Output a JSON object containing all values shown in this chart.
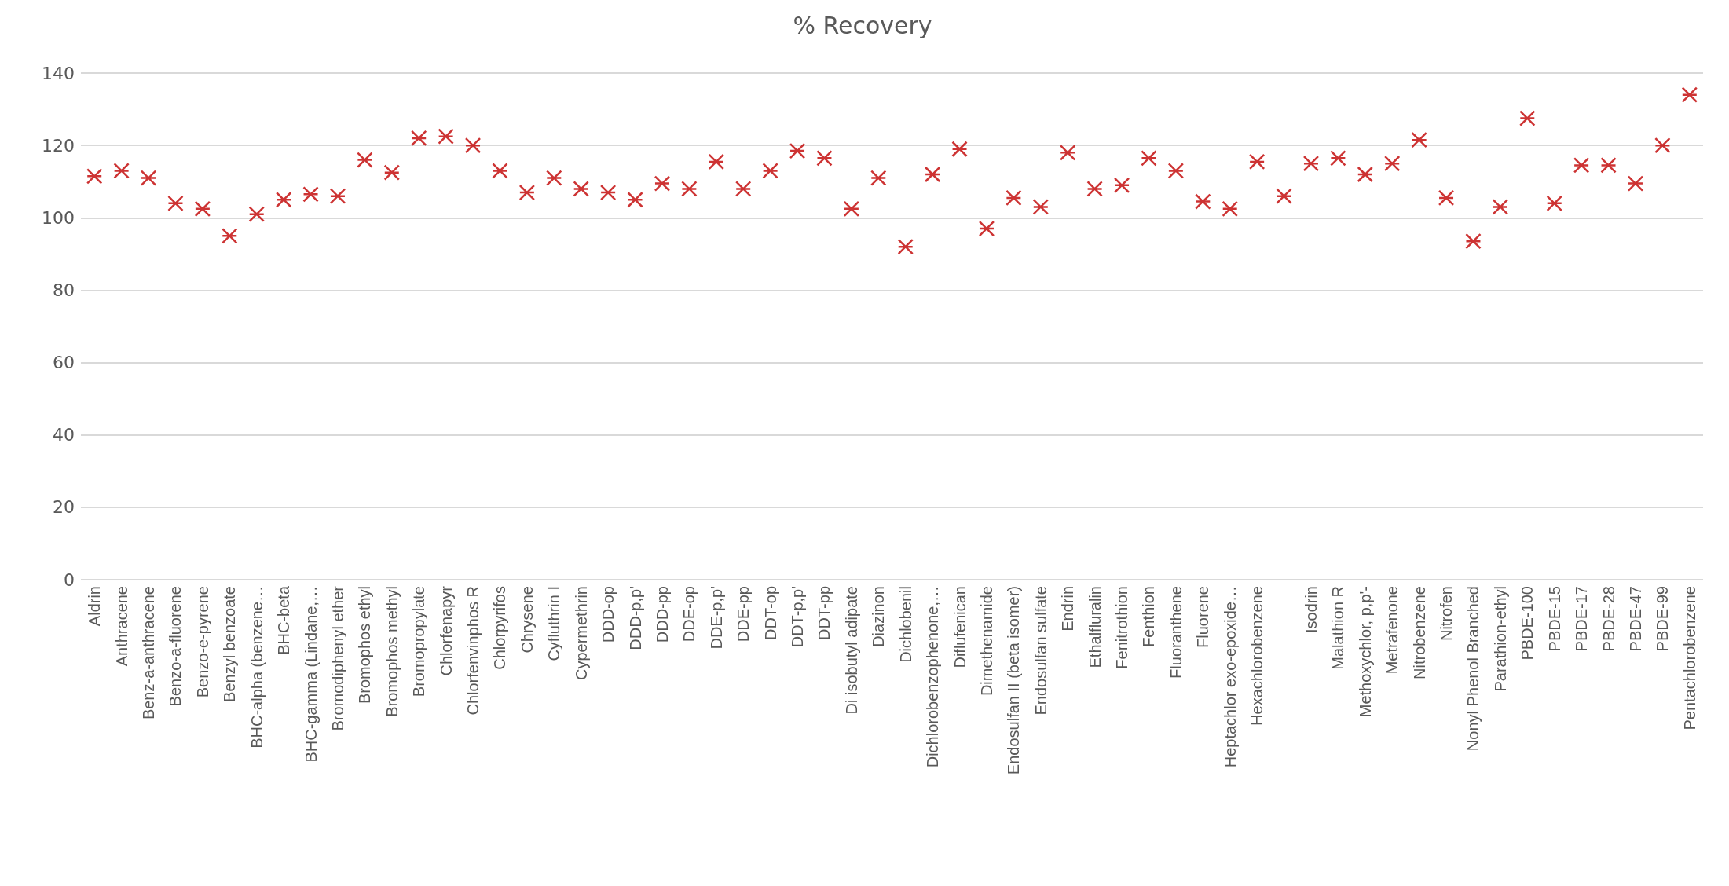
{
  "chart_data": {
    "type": "scatter",
    "title": "% Recovery",
    "categories": [
      "Aldrin",
      "Anthracene",
      "Benz-a-anthracene",
      "Benzo-a-fluorene",
      "Benzo-e-pyrene",
      "Benzyl benzoate",
      "BHC-alpha (benzene…",
      "BHC-beta",
      "BHC-gamma (Lindane,…",
      "Bromodiphenyl ether",
      "Bromophos ethyl",
      "Bromophos methyl",
      "Bromopropylate",
      "Chlorfenapyr",
      "Chlorfenvinphos R",
      "Chlorpyrifos",
      "Chrysene",
      "Cyfluthrin I",
      "Cypermethrin",
      "DDD-op",
      "DDD-p,p'",
      "DDD-pp",
      "DDE-op",
      "DDE-p,p'",
      "DDE-pp",
      "DDT-op",
      "DDT-p,p'",
      "DDT-pp",
      "Di isobutyl adipate",
      "Diazinon",
      "Dichlobenil",
      "Dichlorobenzophenone,…",
      "Diflufenican",
      "Dimethenamide",
      "Endosulfan II (beta isomer)",
      "Endosulfan sulfate",
      "Endrin",
      "Ethalfluralin",
      "Fenitrothion",
      "Fenthion",
      "Fluoranthene",
      "Fluorene",
      "Heptachlor exo-epoxide…",
      "Hexachlorobenzene",
      null,
      "Isodrin",
      "Malathion R",
      "Methoxychlor, p,p'-",
      "Metrafenone",
      "Nitrobenzene",
      "Nitrofen",
      "Nonyl Phenol Branched",
      "Parathion-ethyl",
      "PBDE-100",
      "PBDE-15",
      "PBDE-17",
      "PBDE-28",
      "PBDE-47",
      "PBDE-99",
      "Pentachlorobenzene"
    ],
    "values": [
      111.5,
      113,
      111,
      104,
      102.5,
      95,
      101,
      105,
      106.5,
      106,
      116,
      112.5,
      122,
      122.5,
      120,
      113,
      107,
      111,
      108,
      107,
      105,
      109.5,
      108,
      115.5,
      108,
      113,
      118.5,
      116.5,
      102.5,
      111,
      92,
      112,
      119,
      97,
      105.5,
      103,
      118,
      108,
      109,
      116.5,
      113,
      104.5,
      102.5,
      115.5,
      106,
      115,
      116.5,
      112,
      115,
      121.5,
      105.5,
      93.5,
      103,
      127.5,
      104,
      114.5,
      114.5,
      109.5,
      120,
      134
    ],
    "color": "#c00000",
    "marker": "cross",
    "ylim": [
      0,
      140
    ],
    "yticks": [
      0,
      20,
      40,
      60,
      80,
      100,
      120,
      140
    ],
    "grid": "y"
  }
}
